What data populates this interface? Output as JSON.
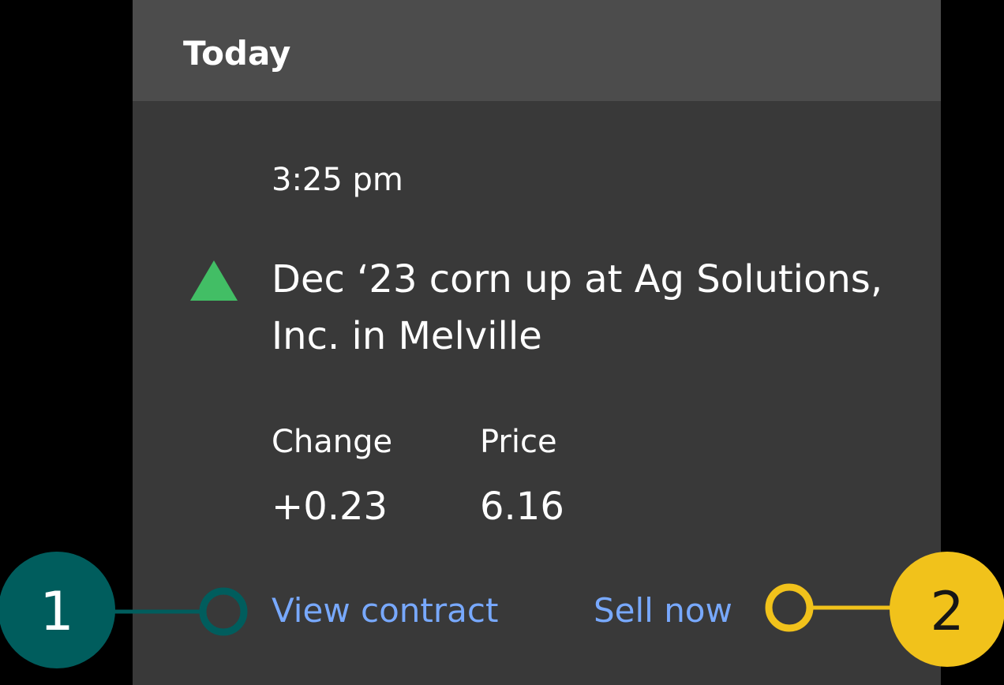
{
  "header": {
    "title": "Today"
  },
  "notification": {
    "time": "3:25 pm",
    "trend_icon": "triangle-up-icon",
    "trend_color": "#42be65",
    "headline": "Dec ‘23 corn up at Ag Solutions, Inc. in Melville",
    "stats": {
      "change": {
        "label": "Change",
        "value": "+0.23"
      },
      "price": {
        "label": "Price",
        "value": "6.16"
      }
    },
    "actions": {
      "view_contract": "View contract",
      "sell_now": "Sell now"
    },
    "link_color": "#78a9ff"
  },
  "annotations": {
    "marker_1": {
      "number": "1",
      "color": "#005d5d"
    },
    "marker_2": {
      "number": "2",
      "color": "#f1c21b"
    }
  }
}
